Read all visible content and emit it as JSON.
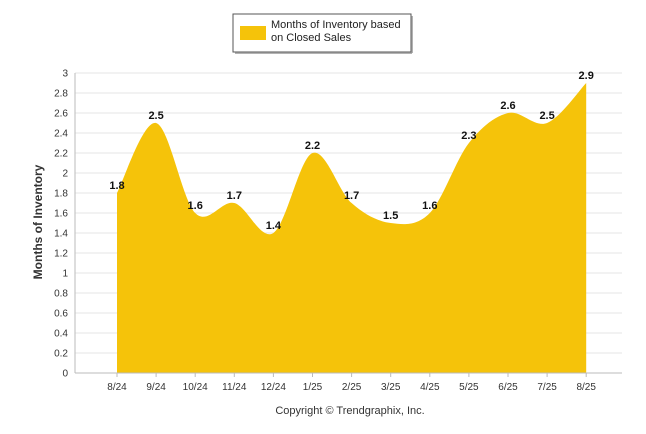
{
  "chart_data": {
    "type": "area",
    "categories": [
      "8/24",
      "9/24",
      "10/24",
      "11/24",
      "12/24",
      "1/25",
      "2/25",
      "3/25",
      "4/25",
      "5/25",
      "6/25",
      "7/25",
      "8/25"
    ],
    "series": [
      {
        "name": "Months of Inventory based on Closed Sales",
        "values": [
          1.8,
          2.5,
          1.6,
          1.7,
          1.4,
          2.2,
          1.7,
          1.5,
          1.6,
          2.3,
          2.6,
          2.5,
          2.9
        ]
      }
    ],
    "ylabel": "Months of Inventory",
    "xlabel": "",
    "ylim": [
      0,
      3
    ],
    "yticks": [
      0,
      0.2,
      0.4,
      0.6,
      0.8,
      1,
      1.2,
      1.4,
      1.6,
      1.8,
      2,
      2.2,
      2.4,
      2.6,
      2.8,
      3
    ],
    "grid": true,
    "legend_position": "top-center",
    "data_labels": true
  },
  "legend": {
    "line1": "Months of Inventory based",
    "line2": "on Closed Sales"
  },
  "footer": {
    "copyright": "Copyright © Trendgraphix, Inc."
  },
  "colors": {
    "fill": "#f5c30a",
    "grid": "#e6e6e6",
    "axis": "#bbbbbb"
  }
}
